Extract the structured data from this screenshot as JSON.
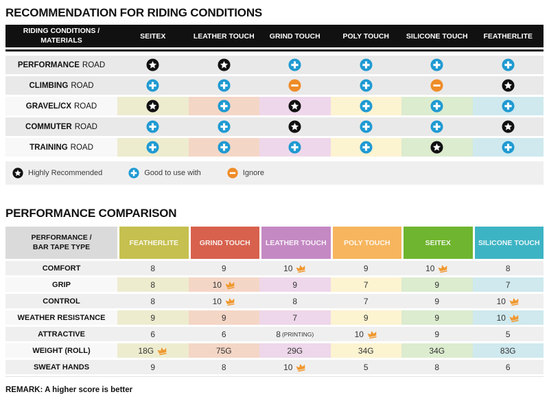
{
  "colors": {
    "table1_header_bg": "#111111",
    "gray_row_t1": "#e9e9e9",
    "gray_row_t2": "#efefef",
    "light_label_col": "#f8f8f8",
    "star_bg": "#111111",
    "plus_bg": "#1f9ad2",
    "minus_bg": "#ee8c28",
    "crown": "#f0982e",
    "column_tints": [
      "#edeccf",
      "#f4d6c6",
      "#eed7ea",
      "#fcf3d1",
      "#dceccf",
      "#cfe9ee"
    ]
  },
  "section1": {
    "title": "RECOMMENDATION FOR RIDING CONDITIONS",
    "header_line1": "RIDING CONDITIONS /",
    "header_line2": "MATERIALS",
    "columns": [
      "SEITEX",
      "LEATHER TOUCH",
      "GRIND TOUCH",
      "POLY TOUCH",
      "SILICONE TOUCH",
      "FEATHERLITE"
    ],
    "rows": [
      {
        "name": "PERFORMANCE",
        "suffix": "ROAD",
        "tinted": false,
        "icons": [
          "star",
          "star",
          "plus",
          "plus",
          "plus",
          "plus"
        ]
      },
      {
        "name": "CLIMBING",
        "suffix": "ROAD",
        "tinted": false,
        "icons": [
          "plus",
          "plus",
          "minus",
          "plus",
          "minus",
          "star"
        ]
      },
      {
        "name": "GRAVEL/CX",
        "suffix": "ROAD",
        "tinted": true,
        "icons": [
          "star",
          "plus",
          "star",
          "plus",
          "plus",
          "plus"
        ]
      },
      {
        "name": "COMMUTER",
        "suffix": "ROAD",
        "tinted": false,
        "icons": [
          "plus",
          "plus",
          "star",
          "plus",
          "plus",
          "star"
        ]
      },
      {
        "name": "TRAINING",
        "suffix": "ROAD",
        "tinted": true,
        "icons": [
          "plus",
          "plus",
          "plus",
          "plus",
          "star",
          "plus"
        ]
      }
    ],
    "legend": [
      {
        "icon": "star",
        "label": "Highly Recommended"
      },
      {
        "icon": "plus",
        "label": "Good to use with"
      },
      {
        "icon": "minus",
        "label": "Ignore"
      }
    ]
  },
  "section2": {
    "title": "PERFORMANCE COMPARISON",
    "header_line1": "PERFORMANCE /",
    "header_line2": "BAR TAPE TYPE",
    "columns": [
      {
        "label": "FEATHERLITE",
        "color": "#c6c050"
      },
      {
        "label": "GRIND TOUCH",
        "color": "#d7614d"
      },
      {
        "label": "LEATHER TOUCH",
        "color": "#c489c3"
      },
      {
        "label": "POLY TOUCH",
        "color": "#f7b55e"
      },
      {
        "label": "SEITEX",
        "color": "#6fb52f"
      },
      {
        "label": "SILICONE TOUCH",
        "color": "#3db4c4"
      }
    ],
    "rows": [
      {
        "label": "COMFORT",
        "tinted": false,
        "cells": [
          {
            "v": "8"
          },
          {
            "v": "9"
          },
          {
            "v": "10",
            "crown": true
          },
          {
            "v": "9"
          },
          {
            "v": "10",
            "crown": true
          },
          {
            "v": "8"
          }
        ]
      },
      {
        "label": "GRIP",
        "tinted": true,
        "cells": [
          {
            "v": "8"
          },
          {
            "v": "10",
            "crown": true
          },
          {
            "v": "9"
          },
          {
            "v": "7"
          },
          {
            "v": "9"
          },
          {
            "v": "7"
          }
        ]
      },
      {
        "label": "CONTROL",
        "tinted": false,
        "cells": [
          {
            "v": "8"
          },
          {
            "v": "10",
            "crown": true
          },
          {
            "v": "8"
          },
          {
            "v": "7"
          },
          {
            "v": "9"
          },
          {
            "v": "10",
            "crown": true
          }
        ]
      },
      {
        "label": "WEATHER RESISTANCE",
        "tinted": true,
        "cells": [
          {
            "v": "9"
          },
          {
            "v": "9"
          },
          {
            "v": "7"
          },
          {
            "v": "9"
          },
          {
            "v": "9"
          },
          {
            "v": "10",
            "crown": true
          }
        ]
      },
      {
        "label": "ATTRACTIVE",
        "tinted": false,
        "cells": [
          {
            "v": "6"
          },
          {
            "v": "6"
          },
          {
            "v": "8",
            "note": "(PRINTING)"
          },
          {
            "v": "10",
            "crown": true
          },
          {
            "v": "9"
          },
          {
            "v": "5"
          }
        ]
      },
      {
        "label": "WEIGHT (ROLL)",
        "tinted": true,
        "cells": [
          {
            "v": "18G",
            "crown": true
          },
          {
            "v": "75G"
          },
          {
            "v": "29G"
          },
          {
            "v": "34G"
          },
          {
            "v": "34G"
          },
          {
            "v": "83G"
          }
        ]
      },
      {
        "label": "SWEAT HANDS",
        "tinted": false,
        "cells": [
          {
            "v": "9"
          },
          {
            "v": "8"
          },
          {
            "v": "10",
            "crown": true
          },
          {
            "v": "5"
          },
          {
            "v": "8"
          },
          {
            "v": "6"
          }
        ]
      }
    ],
    "remark": "REMARK: A higher score is better"
  },
  "chart_data": [
    {
      "type": "table",
      "title": "RECOMMENDATION FOR RIDING CONDITIONS",
      "row_header": "RIDING CONDITIONS / MATERIALS",
      "columns": [
        "SEITEX",
        "LEATHER TOUCH",
        "GRIND TOUCH",
        "POLY TOUCH",
        "SILICONE TOUCH",
        "FEATHERLITE"
      ],
      "rows": [
        "PERFORMANCE ROAD",
        "CLIMBING ROAD",
        "GRAVEL/CX ROAD",
        "COMMUTER ROAD",
        "TRAINING ROAD"
      ],
      "values": [
        [
          "highly-recommended",
          "highly-recommended",
          "good-to-use-with",
          "good-to-use-with",
          "good-to-use-with",
          "good-to-use-with"
        ],
        [
          "good-to-use-with",
          "good-to-use-with",
          "ignore",
          "good-to-use-with",
          "ignore",
          "highly-recommended"
        ],
        [
          "highly-recommended",
          "good-to-use-with",
          "highly-recommended",
          "good-to-use-with",
          "good-to-use-with",
          "good-to-use-with"
        ],
        [
          "good-to-use-with",
          "good-to-use-with",
          "highly-recommended",
          "good-to-use-with",
          "good-to-use-with",
          "highly-recommended"
        ],
        [
          "good-to-use-with",
          "good-to-use-with",
          "good-to-use-with",
          "good-to-use-with",
          "highly-recommended",
          "good-to-use-with"
        ]
      ],
      "legend": [
        "Highly Recommended",
        "Good to use with",
        "Ignore"
      ]
    },
    {
      "type": "table",
      "title": "PERFORMANCE COMPARISON",
      "row_header": "PERFORMANCE / BAR TAPE TYPE",
      "columns": [
        "FEATHERLITE",
        "GRIND TOUCH",
        "LEATHER TOUCH",
        "POLY TOUCH",
        "SEITEX",
        "SILICONE TOUCH"
      ],
      "rows": [
        "COMFORT",
        "GRIP",
        "CONTROL",
        "WEATHER RESISTANCE",
        "ATTRACTIVE",
        "WEIGHT (ROLL)",
        "SWEAT HANDS"
      ],
      "values": [
        [
          "8",
          "9",
          "10 (best)",
          "9",
          "10 (best)",
          "8"
        ],
        [
          "8",
          "10 (best)",
          "9",
          "7",
          "9",
          "7"
        ],
        [
          "8",
          "10 (best)",
          "8",
          "7",
          "9",
          "10 (best)"
        ],
        [
          "9",
          "9",
          "7",
          "9",
          "9",
          "10 (best)"
        ],
        [
          "6",
          "6",
          "8 (PRINTING)",
          "10 (best)",
          "9",
          "5"
        ],
        [
          "18G (best)",
          "75G",
          "29G",
          "34G",
          "34G",
          "83G"
        ],
        [
          "9",
          "8",
          "10 (best)",
          "5",
          "8",
          "6"
        ]
      ],
      "remark": "REMARK: A higher score is better"
    }
  ]
}
